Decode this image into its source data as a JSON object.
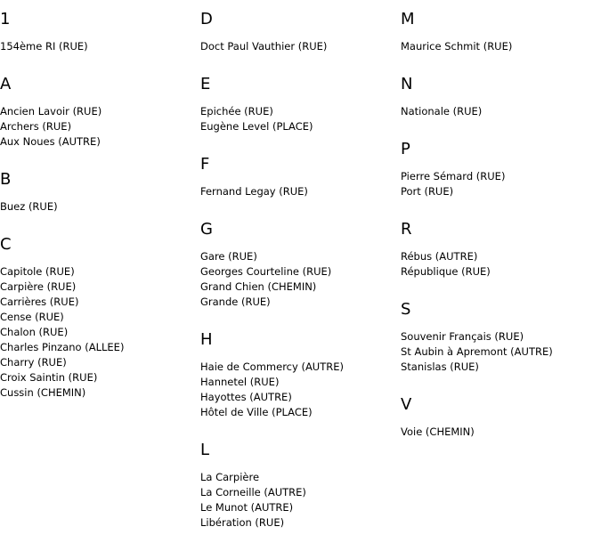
{
  "columns": [
    [
      {
        "letter": "1",
        "items": [
          "154ème RI (RUE)"
        ]
      },
      {
        "letter": "A",
        "items": [
          "Ancien Lavoir (RUE)",
          "Archers (RUE)",
          "Aux Noues (AUTRE)"
        ]
      },
      {
        "letter": "B",
        "items": [
          "Buez (RUE)"
        ]
      },
      {
        "letter": "C",
        "items": [
          "Capitole (RUE)",
          "Carpière (RUE)",
          "Carrières (RUE)",
          "Cense (RUE)",
          "Chalon (RUE)",
          "Charles Pinzano (ALLEE)",
          "Charry (RUE)",
          "Croix Saintin (RUE)",
          "Cussin (CHEMIN)"
        ]
      }
    ],
    [
      {
        "letter": "D",
        "items": [
          "Doct Paul Vauthier (RUE)"
        ]
      },
      {
        "letter": "E",
        "items": [
          "Epichée (RUE)",
          "Eugène Level (PLACE)"
        ]
      },
      {
        "letter": "F",
        "items": [
          "Fernand Legay (RUE)"
        ]
      },
      {
        "letter": "G",
        "items": [
          "Gare (RUE)",
          "Georges Courteline (RUE)",
          "Grand Chien (CHEMIN)",
          "Grande (RUE)"
        ]
      },
      {
        "letter": "H",
        "items": [
          "Haie de Commercy (AUTRE)",
          "Hannetel (RUE)",
          "Hayottes (AUTRE)",
          "Hôtel de Ville (PLACE)"
        ]
      },
      {
        "letter": "L",
        "items": [
          "La Carpière",
          "La Corneille (AUTRE)",
          "Le Munot (AUTRE)",
          "Libération (RUE)"
        ]
      }
    ],
    [
      {
        "letter": "M",
        "items": [
          "Maurice Schmit (RUE)"
        ]
      },
      {
        "letter": "N",
        "items": [
          "Nationale (RUE)"
        ]
      },
      {
        "letter": "P",
        "items": [
          "Pierre Sémard (RUE)",
          "Port (RUE)"
        ]
      },
      {
        "letter": "R",
        "items": [
          "Rébus (AUTRE)",
          "République (RUE)"
        ]
      },
      {
        "letter": "S",
        "items": [
          "Souvenir Français (RUE)",
          "St Aubin à Apremont (AUTRE)",
          "Stanislas (RUE)"
        ]
      },
      {
        "letter": "V",
        "items": [
          "Voie (CHEMIN)"
        ]
      }
    ]
  ]
}
